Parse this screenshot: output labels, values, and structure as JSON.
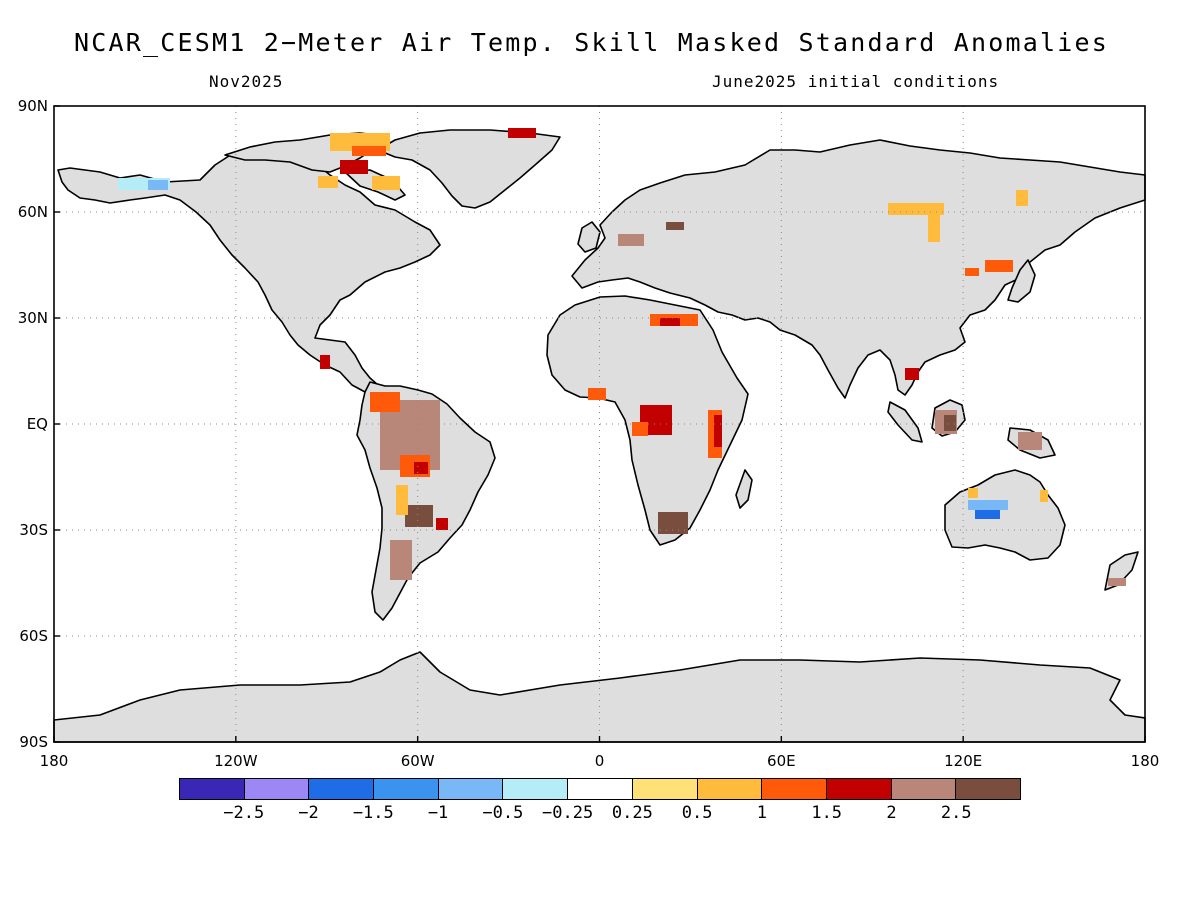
{
  "title": "NCAR_CESM1 2−Meter Air Temp. Skill Masked Standard Anomalies",
  "subtitle_left": "Nov2025",
  "subtitle_right": "June2025 initial conditions",
  "axes": {
    "lat_labels": [
      "90N",
      "60N",
      "30N",
      "EQ",
      "30S",
      "60S",
      "90S"
    ],
    "lon_labels": [
      "180",
      "120W",
      "60W",
      "0",
      "60E",
      "120E",
      "180"
    ],
    "grid": "dotted"
  },
  "colors": {
    "land": "#dedede",
    "ocean": "#ffffff",
    "coastline": "#000000"
  },
  "colorbar": {
    "colors": [
      "#3b27b5",
      "#9c87f5",
      "#1f6de6",
      "#3b93f0",
      "#78b8f6",
      "#b4ecf7",
      "#ffffff",
      "#ffe178",
      "#ffbb3b",
      "#ff5a0a",
      "#c20000",
      "#b8877a",
      "#7a4e3e"
    ],
    "labels": [
      "−2.5",
      "−2",
      "−1.5",
      "−1",
      "−0.5",
      "−0.25",
      "0.25",
      "0.5",
      "1",
      "1.5",
      "2",
      "2.5"
    ]
  },
  "anomaly_regions": [
    {
      "region": "Amazon basin",
      "category": "2.5"
    },
    {
      "region": "Central Brazil",
      "category": "1.5"
    },
    {
      "region": "Southern South America",
      "category": "2.5"
    },
    {
      "region": "Congo basin",
      "category": "2"
    },
    {
      "region": "East Africa",
      "category": "1.5"
    },
    {
      "region": "Southern Africa",
      "category": "2.5"
    },
    {
      "region": "Canadian Arctic Archipelago",
      "category": "1"
    },
    {
      "region": "Central Siberia",
      "category": "0.5"
    },
    {
      "region": "Northeast China",
      "category": "1"
    },
    {
      "region": "Borneo",
      "category": "2.5"
    },
    {
      "region": "New Guinea",
      "category": "2.5"
    },
    {
      "region": "Central Australia",
      "category": "−1.5"
    },
    {
      "region": "Alaska",
      "category": "−0.5"
    },
    {
      "region": "North Africa / Libya",
      "category": "1"
    }
  ]
}
